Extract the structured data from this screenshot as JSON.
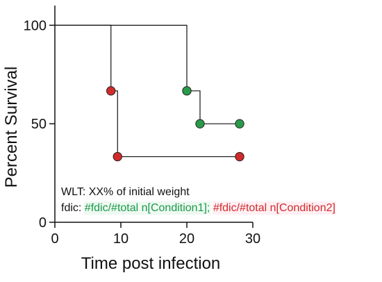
{
  "chart_data": {
    "type": "line",
    "title": "",
    "xlabel": "Time post infection",
    "ylabel": "Percent Survival",
    "xlim": [
      0,
      30
    ],
    "ylim": [
      0,
      110
    ],
    "xticks": [
      0,
      10,
      20,
      30
    ],
    "yticks": [
      0,
      50,
      100
    ],
    "grid": false,
    "legend": "none",
    "series": [
      {
        "color": "#2a9a4a",
        "step_path": [
          [
            0,
            100
          ],
          [
            20,
            100
          ],
          [
            20,
            66.7
          ],
          [
            22,
            66.7
          ],
          [
            22,
            50
          ],
          [
            28,
            50
          ]
        ],
        "markers": [
          [
            20,
            66.7
          ],
          [
            22,
            50
          ],
          [
            28,
            50
          ]
        ]
      },
      {
        "color": "#d22a2a",
        "step_path": [
          [
            0,
            100
          ],
          [
            8.5,
            100
          ],
          [
            8.5,
            66.7
          ],
          [
            9.5,
            66.7
          ],
          [
            9.5,
            33.3
          ],
          [
            28,
            33.3
          ]
        ],
        "markers": [
          [
            8.5,
            66.7
          ],
          [
            9.5,
            33.3
          ],
          [
            28,
            33.3
          ]
        ]
      }
    ],
    "annotation": {
      "line1": "WLT: XX% of initial weight",
      "line2_prefix": "fdic: ",
      "line2_green": "#fdic/#total n[Condition1];",
      "line2_red": "#fdic/#total n[Condition2]"
    },
    "colors": {
      "axis": "#111111",
      "line": "#111111",
      "green": "#1a9a4a",
      "red": "#d22a2a",
      "green_highlight": "#eef9f1",
      "red_highlight": "#fff0f4"
    }
  }
}
